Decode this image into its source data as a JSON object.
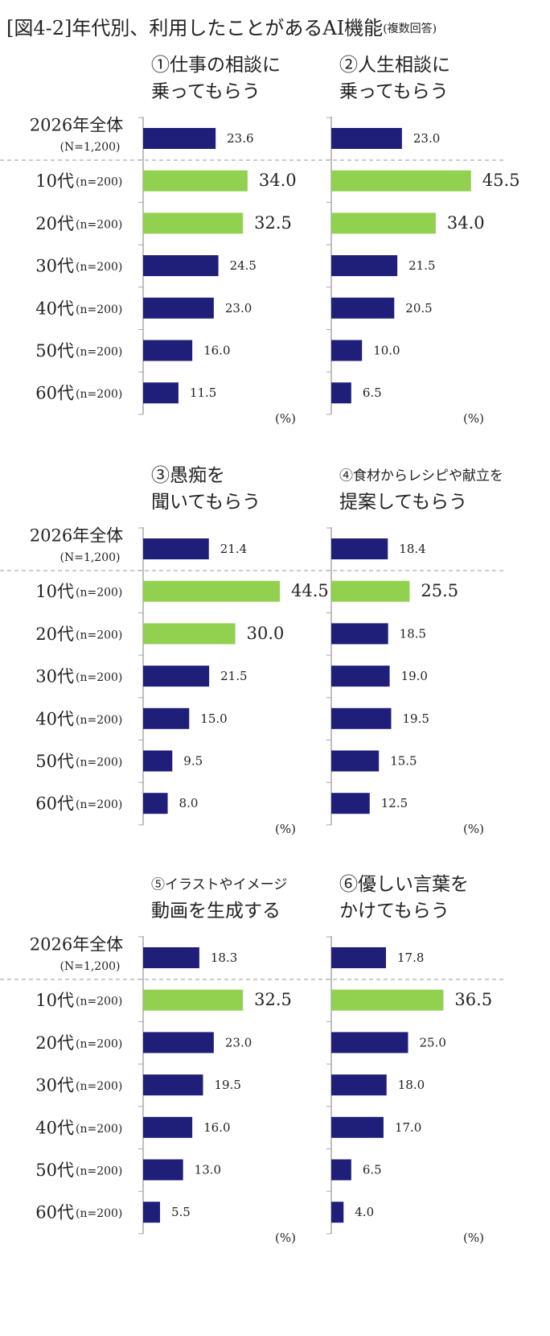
{
  "title": "[図4-2]年代別、利用したことがあるAI機能",
  "title_note": "(複数回答)",
  "categories": [
    "2026年全体",
    "10代",
    "20代",
    "30代",
    "40代",
    "50代",
    "60代"
  ],
  "category_notes": [
    "(N=1,200)",
    "(n=200)",
    "(n=200)",
    "(n=200)",
    "(n=200)",
    "(n=200)",
    "(n=200)"
  ],
  "unit": "(%)",
  "chart_data": [
    {
      "type": "bar",
      "title_lines": [
        "①仕事の相談に",
        "乗ってもらう"
      ],
      "values": [
        23.6,
        34.0,
        32.5,
        24.5,
        23.0,
        16.0,
        11.5
      ],
      "value_labels": [
        "23.6",
        "34.0",
        "32.5",
        "24.5",
        "23.0",
        "16.0",
        "11.5"
      ],
      "colors": [
        "#1f1f7a",
        "#92d050",
        "#92d050",
        "#1f1f7a",
        "#1f1f7a",
        "#1f1f7a",
        "#1f1f7a"
      ],
      "highlight_color": "#92d050",
      "xlim": [
        0,
        50
      ]
    },
    {
      "type": "bar",
      "title_lines": [
        "②人生相談に",
        "乗ってもらう"
      ],
      "values": [
        23.0,
        45.5,
        34.0,
        21.5,
        20.5,
        10.0,
        6.5
      ],
      "value_labels": [
        "23.0",
        "45.5",
        "34.0",
        "21.5",
        "20.5",
        "10.0",
        "6.5"
      ],
      "colors": [
        "#1f1f7a",
        "#92d050",
        "#92d050",
        "#1f1f7a",
        "#1f1f7a",
        "#1f1f7a",
        "#1f1f7a"
      ],
      "highlight_color": "#92d050",
      "xlim": [
        0,
        50
      ]
    },
    {
      "type": "bar",
      "title_lines": [
        "③愚痴を",
        "聞いてもらう"
      ],
      "values": [
        21.4,
        44.5,
        30.0,
        21.5,
        15.0,
        9.5,
        8.0
      ],
      "value_labels": [
        "21.4",
        "44.5",
        "30.0",
        "21.5",
        "15.0",
        "9.5",
        "8.0"
      ],
      "colors": [
        "#1f1f7a",
        "#92d050",
        "#92d050",
        "#1f1f7a",
        "#1f1f7a",
        "#1f1f7a",
        "#1f1f7a"
      ],
      "highlight_color": "#92d050",
      "xlim": [
        0,
        50
      ]
    },
    {
      "type": "bar",
      "title_lines": [
        "④食材からレシピや献立を",
        "提案してもらう"
      ],
      "values": [
        18.4,
        25.5,
        18.5,
        19.0,
        19.5,
        15.5,
        12.5
      ],
      "value_labels": [
        "18.4",
        "25.5",
        "18.5",
        "19.0",
        "19.5",
        "15.5",
        "12.5"
      ],
      "colors": [
        "#1f1f7a",
        "#92d050",
        "#1f1f7a",
        "#1f1f7a",
        "#1f1f7a",
        "#1f1f7a",
        "#1f1f7a"
      ],
      "highlight_color": "#92d050",
      "xlim": [
        0,
        50
      ]
    },
    {
      "type": "bar",
      "title_lines": [
        "⑤イラストやイメージ",
        "動画を生成する"
      ],
      "values": [
        18.3,
        32.5,
        23.0,
        19.5,
        16.0,
        13.0,
        5.5
      ],
      "value_labels": [
        "18.3",
        "32.5",
        "23.0",
        "19.5",
        "16.0",
        "13.0",
        "5.5"
      ],
      "colors": [
        "#1f1f7a",
        "#92d050",
        "#1f1f7a",
        "#1f1f7a",
        "#1f1f7a",
        "#1f1f7a",
        "#1f1f7a"
      ],
      "highlight_color": "#92d050",
      "xlim": [
        0,
        50
      ]
    },
    {
      "type": "bar",
      "title_lines": [
        "⑥優しい言葉を",
        "かけてもらう"
      ],
      "values": [
        17.8,
        36.5,
        25.0,
        18.0,
        17.0,
        6.5,
        4.0
      ],
      "value_labels": [
        "17.8",
        "36.5",
        "25.0",
        "18.0",
        "17.0",
        "6.5",
        "4.0"
      ],
      "colors": [
        "#1f1f7a",
        "#92d050",
        "#1f1f7a",
        "#1f1f7a",
        "#1f1f7a",
        "#1f1f7a",
        "#1f1f7a"
      ],
      "highlight_color": "#92d050",
      "xlim": [
        0,
        50
      ]
    }
  ]
}
